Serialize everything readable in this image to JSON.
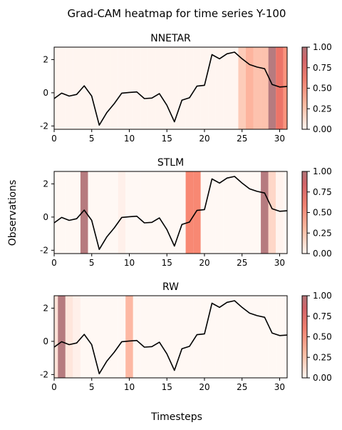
{
  "figure": {
    "title": "Grad-CAM heatmap for time series Y-100",
    "xlabel": "Timesteps",
    "ylabel": "Observations"
  },
  "chart_data": {
    "type": "line",
    "x": [
      0,
      1,
      2,
      3,
      4,
      5,
      6,
      7,
      8,
      9,
      10,
      11,
      12,
      13,
      14,
      15,
      16,
      17,
      18,
      19,
      20,
      21,
      22,
      23,
      24,
      25,
      26,
      27,
      28,
      29,
      30,
      31
    ],
    "y": [
      -0.35,
      -0.02,
      -0.2,
      -0.1,
      0.42,
      -0.2,
      -1.95,
      -1.2,
      -0.65,
      -0.02,
      0.02,
      0.05,
      -0.35,
      -0.32,
      -0.05,
      -0.75,
      -1.75,
      -0.45,
      -0.3,
      0.4,
      0.45,
      2.3,
      2.05,
      2.35,
      2.45,
      2.05,
      1.7,
      1.55,
      1.45,
      0.5,
      0.35,
      0.38
    ],
    "xlim": [
      0,
      31
    ],
    "ylim": [
      -2.2,
      2.75
    ],
    "xticks": [
      0,
      5,
      10,
      15,
      20,
      25,
      30
    ],
    "yticks": [
      -2,
      0,
      2
    ],
    "colorbar": {
      "min": 0,
      "max": 1,
      "ticks": [
        "0.00",
        "0.25",
        "0.50",
        "0.75",
        "1.00"
      ]
    },
    "panels": [
      {
        "name": "NNETAR",
        "heat": [
          0.02,
          0.02,
          0.02,
          0.02,
          0.02,
          0.02,
          0.02,
          0.02,
          0.02,
          0.02,
          0.02,
          0.02,
          0.02,
          0.02,
          0.02,
          0.02,
          0.02,
          0.02,
          0.02,
          0.02,
          0.02,
          0.02,
          0.02,
          0.02,
          0.02,
          0.3,
          0.42,
          0.35,
          0.35,
          0.9,
          0.78,
          0.58
        ]
      },
      {
        "name": "STLM",
        "heat": [
          0,
          0,
          0,
          0,
          0.88,
          0,
          0,
          0,
          0,
          0.05,
          0,
          0,
          0,
          0,
          0,
          0,
          0,
          0,
          0.65,
          0.65,
          0,
          0,
          0,
          0,
          0,
          0,
          0,
          0,
          0.9,
          0.22,
          0.03,
          0
        ]
      },
      {
        "name": "RW",
        "heat": [
          0.15,
          0.85,
          0.12,
          0.05,
          0,
          0,
          0,
          0,
          0,
          0,
          0.4,
          0,
          0,
          0,
          0,
          0,
          0,
          0,
          0,
          0,
          0,
          0,
          0,
          0,
          0,
          0,
          0,
          0,
          0,
          0,
          0,
          0
        ]
      }
    ]
  }
}
